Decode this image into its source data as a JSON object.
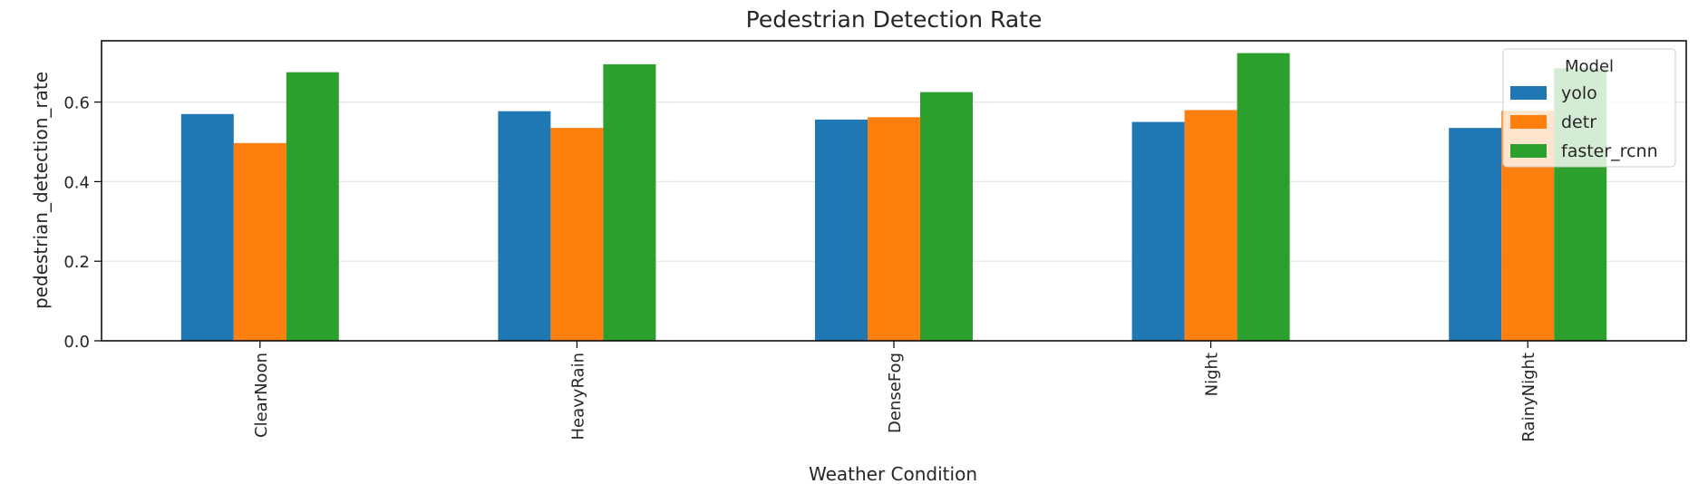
{
  "chart_data": {
    "type": "bar",
    "title": "Pedestrian Detection Rate",
    "xlabel": "Weather Condition",
    "ylabel": "pedestrian_detection_rate",
    "categories": [
      "ClearNoon",
      "HeavyRain",
      "DenseFog",
      "Night",
      "RainyNight"
    ],
    "series": [
      {
        "name": "yolo",
        "color": "#1f77b4",
        "values": [
          0.57,
          0.577,
          0.556,
          0.55,
          0.535
        ]
      },
      {
        "name": "detr",
        "color": "#ff7f0e",
        "values": [
          0.497,
          0.535,
          0.562,
          0.58,
          0.578
        ]
      },
      {
        "name": "faster_rcnn",
        "color": "#2ca02c",
        "values": [
          0.675,
          0.695,
          0.625,
          0.723,
          0.685
        ]
      }
    ],
    "ylim": [
      0,
      0.754
    ],
    "yticks": [
      0.0,
      0.2,
      0.4,
      0.6
    ],
    "ytick_labels": [
      "0.0",
      "0.2",
      "0.4",
      "0.6"
    ],
    "grid": "y",
    "legend": {
      "title": "Model",
      "placement": "top-right"
    }
  }
}
